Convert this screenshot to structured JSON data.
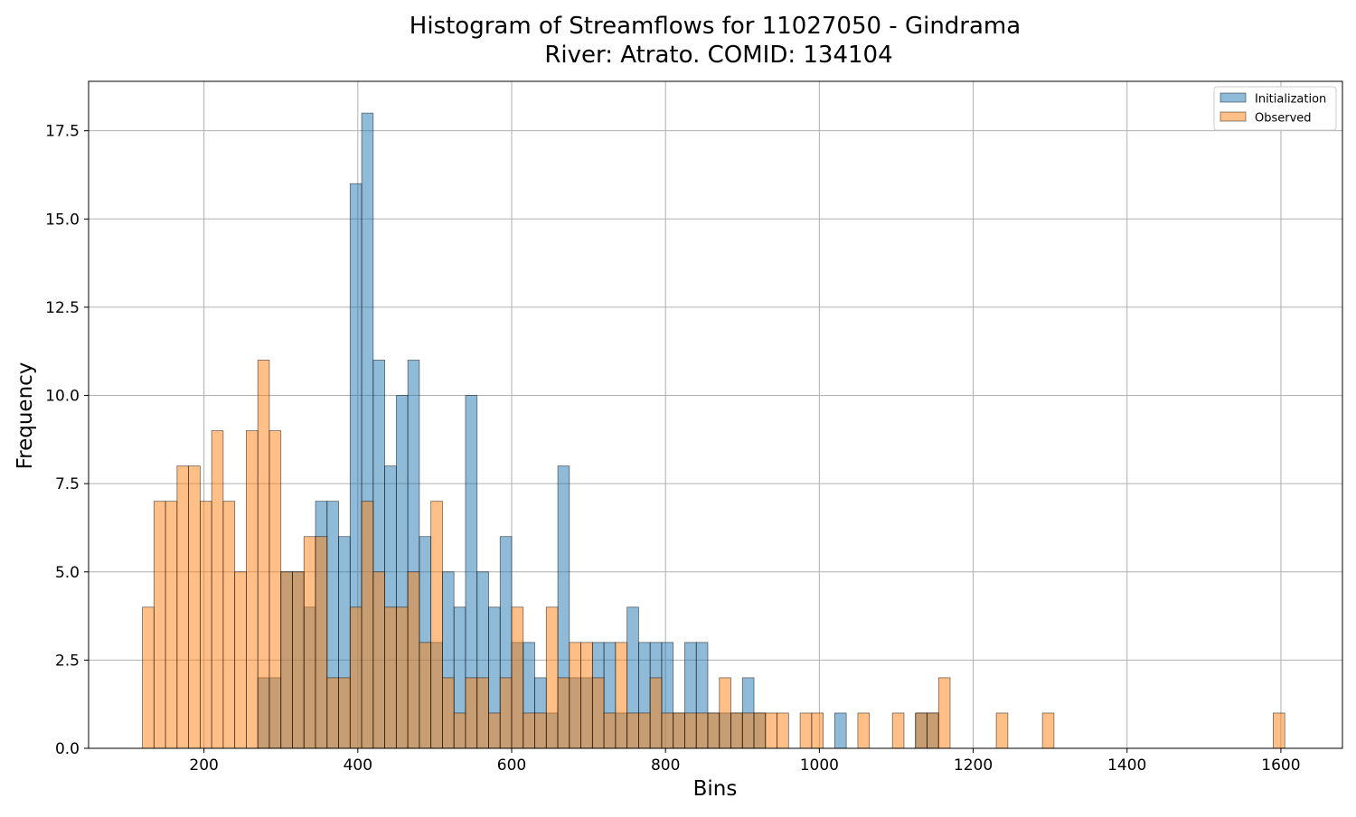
{
  "chart_data": {
    "type": "bar",
    "title": "Histogram of Streamflows for 11027050 - Gindrama",
    "subtitle": "River: Atrato. COMID: 134104",
    "xlabel": "Bins",
    "ylabel": "Frequency",
    "xlim": [
      50,
      1680
    ],
    "ylim": [
      0,
      18.9
    ],
    "x_ticks": [
      200,
      400,
      600,
      800,
      1000,
      1200,
      1400,
      1600
    ],
    "y_ticks": [
      0.0,
      2.5,
      5.0,
      7.5,
      10.0,
      12.5,
      15.0,
      17.5
    ],
    "x_tick_labels": [
      "200",
      "400",
      "600",
      "800",
      "1000",
      "1200",
      "1400",
      "1600"
    ],
    "y_tick_labels": [
      "0.0",
      "2.5",
      "5.0",
      "7.5",
      "10.0",
      "12.5",
      "15.0",
      "17.5"
    ],
    "grid": true,
    "legend_position": "top-right",
    "bin_width": 15,
    "series": [
      {
        "name": "Initialization",
        "color": "#1f77b4",
        "bins": [
          [
            270,
            2
          ],
          [
            285,
            2
          ],
          [
            300,
            5
          ],
          [
            315,
            5
          ],
          [
            330,
            4
          ],
          [
            345,
            7
          ],
          [
            360,
            7
          ],
          [
            375,
            6
          ],
          [
            390,
            16
          ],
          [
            405,
            18
          ],
          [
            420,
            11
          ],
          [
            435,
            8
          ],
          [
            450,
            10
          ],
          [
            465,
            11
          ],
          [
            480,
            6
          ],
          [
            495,
            3
          ],
          [
            510,
            5
          ],
          [
            525,
            4
          ],
          [
            540,
            10
          ],
          [
            555,
            5
          ],
          [
            570,
            4
          ],
          [
            585,
            6
          ],
          [
            600,
            3
          ],
          [
            615,
            3
          ],
          [
            630,
            2
          ],
          [
            645,
            1
          ],
          [
            660,
            8
          ],
          [
            675,
            2
          ],
          [
            690,
            2
          ],
          [
            705,
            3
          ],
          [
            720,
            3
          ],
          [
            735,
            1
          ],
          [
            750,
            4
          ],
          [
            765,
            3
          ],
          [
            780,
            3
          ],
          [
            795,
            3
          ],
          [
            810,
            1
          ],
          [
            825,
            3
          ],
          [
            840,
            3
          ],
          [
            855,
            1
          ],
          [
            870,
            1
          ],
          [
            885,
            1
          ],
          [
            900,
            2
          ],
          [
            915,
            1
          ],
          [
            1020,
            1
          ],
          [
            1125,
            1
          ],
          [
            1140,
            1
          ]
        ]
      },
      {
        "name": "Observed",
        "color": "#ff7f0e",
        "bins": [
          [
            120,
            4
          ],
          [
            135,
            7
          ],
          [
            150,
            7
          ],
          [
            165,
            8
          ],
          [
            180,
            8
          ],
          [
            195,
            7
          ],
          [
            210,
            9
          ],
          [
            225,
            7
          ],
          [
            240,
            5
          ],
          [
            255,
            9
          ],
          [
            270,
            11
          ],
          [
            285,
            9
          ],
          [
            300,
            5
          ],
          [
            315,
            5
          ],
          [
            330,
            6
          ],
          [
            345,
            6
          ],
          [
            360,
            2
          ],
          [
            375,
            2
          ],
          [
            390,
            4
          ],
          [
            405,
            7
          ],
          [
            420,
            5
          ],
          [
            435,
            4
          ],
          [
            450,
            4
          ],
          [
            465,
            5
          ],
          [
            480,
            3
          ],
          [
            495,
            7
          ],
          [
            510,
            2
          ],
          [
            525,
            1
          ],
          [
            540,
            2
          ],
          [
            555,
            2
          ],
          [
            570,
            1
          ],
          [
            585,
            2
          ],
          [
            600,
            4
          ],
          [
            615,
            1
          ],
          [
            630,
            1
          ],
          [
            645,
            4
          ],
          [
            660,
            2
          ],
          [
            675,
            3
          ],
          [
            690,
            3
          ],
          [
            705,
            2
          ],
          [
            720,
            1
          ],
          [
            735,
            3
          ],
          [
            750,
            1
          ],
          [
            765,
            1
          ],
          [
            780,
            2
          ],
          [
            795,
            1
          ],
          [
            810,
            1
          ],
          [
            825,
            1
          ],
          [
            840,
            1
          ],
          [
            855,
            1
          ],
          [
            870,
            2
          ],
          [
            885,
            1
          ],
          [
            900,
            1
          ],
          [
            915,
            1
          ],
          [
            930,
            1
          ],
          [
            945,
            1
          ],
          [
            975,
            1
          ],
          [
            990,
            1
          ],
          [
            1050,
            1
          ],
          [
            1095,
            1
          ],
          [
            1125,
            1
          ],
          [
            1140,
            1
          ],
          [
            1155,
            2
          ],
          [
            1230,
            1
          ],
          [
            1290,
            1
          ],
          [
            1590,
            1
          ]
        ]
      }
    ]
  }
}
